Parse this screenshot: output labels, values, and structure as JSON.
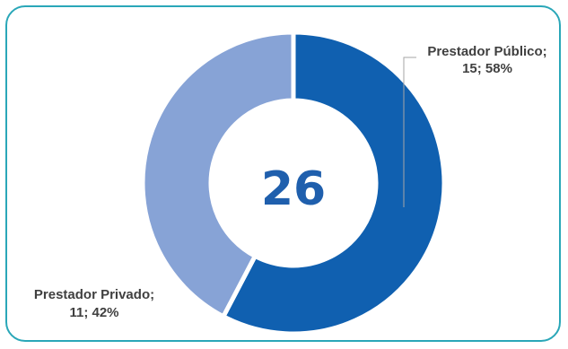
{
  "chart_data": {
    "type": "pie",
    "donut": true,
    "center_value": "26",
    "slices": [
      {
        "label": "Prestador Público",
        "value": 15,
        "percent": "58%",
        "color": "#1060b0",
        "label_text": "Prestador Público;",
        "value_text": "15; 58%"
      },
      {
        "label": "Prestador Privado",
        "value": 11,
        "percent": "42%",
        "color": "#87a3d6",
        "label_text": "Prestador Privado;",
        "value_text": "11; 42%"
      }
    ],
    "title": "",
    "legend": "none"
  },
  "colors": {
    "border": "#2aa7b8",
    "center_text": "#1f5fad",
    "label_text": "#404040",
    "leader_line": "#a6a6a6"
  }
}
